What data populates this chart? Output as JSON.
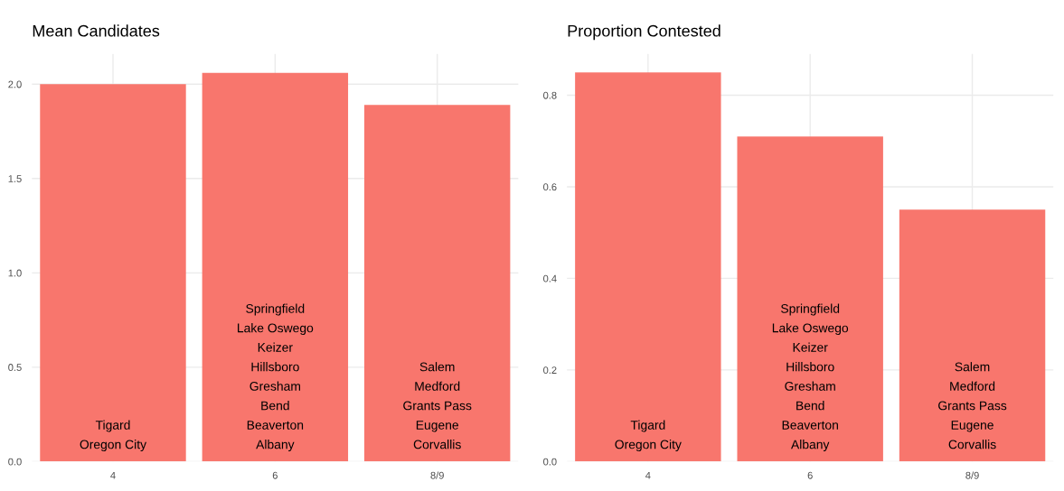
{
  "chart_data": [
    {
      "type": "bar",
      "title": "Mean Candidates",
      "categories": [
        "4",
        "6",
        "8/9"
      ],
      "values": [
        2.0,
        2.06,
        1.89
      ],
      "color": "#f8766d",
      "ylim": [
        0,
        2.16
      ],
      "yticks": [
        {
          "value": 0,
          "label": "0.0"
        },
        0.5,
        {
          "value": 1,
          "label": "1.0"
        },
        1.5,
        {
          "value": 2,
          "label": "2.0"
        }
      ],
      "grid": true,
      "annotations": [
        "Tigard\nOregon City",
        "Springfield\nLake Oswego\nKeizer\nHillsboro\nGresham\nBend\nBeaverton\nAlbany",
        "Salem\nMedford\nGrants Pass\nEugene\nCorvallis"
      ]
    },
    {
      "type": "bar",
      "title": "Proportion Contested",
      "categories": [
        "4",
        "6",
        "8/9"
      ],
      "values": [
        0.85,
        0.71,
        0.55
      ],
      "color": "#f8766d",
      "ylim": [
        0,
        0.89
      ],
      "yticks": [
        {
          "value": 0,
          "label": "0.0"
        },
        0.2,
        0.4,
        0.6,
        0.8
      ],
      "grid": true,
      "annotations": [
        "Tigard\nOregon City",
        "Springfield\nLake Oswego\nKeizer\nHillsboro\nGresham\nBend\nBeaverton\nAlbany",
        "Salem\nMedford\nGrants Pass\nEugene\nCorvallis"
      ]
    }
  ]
}
